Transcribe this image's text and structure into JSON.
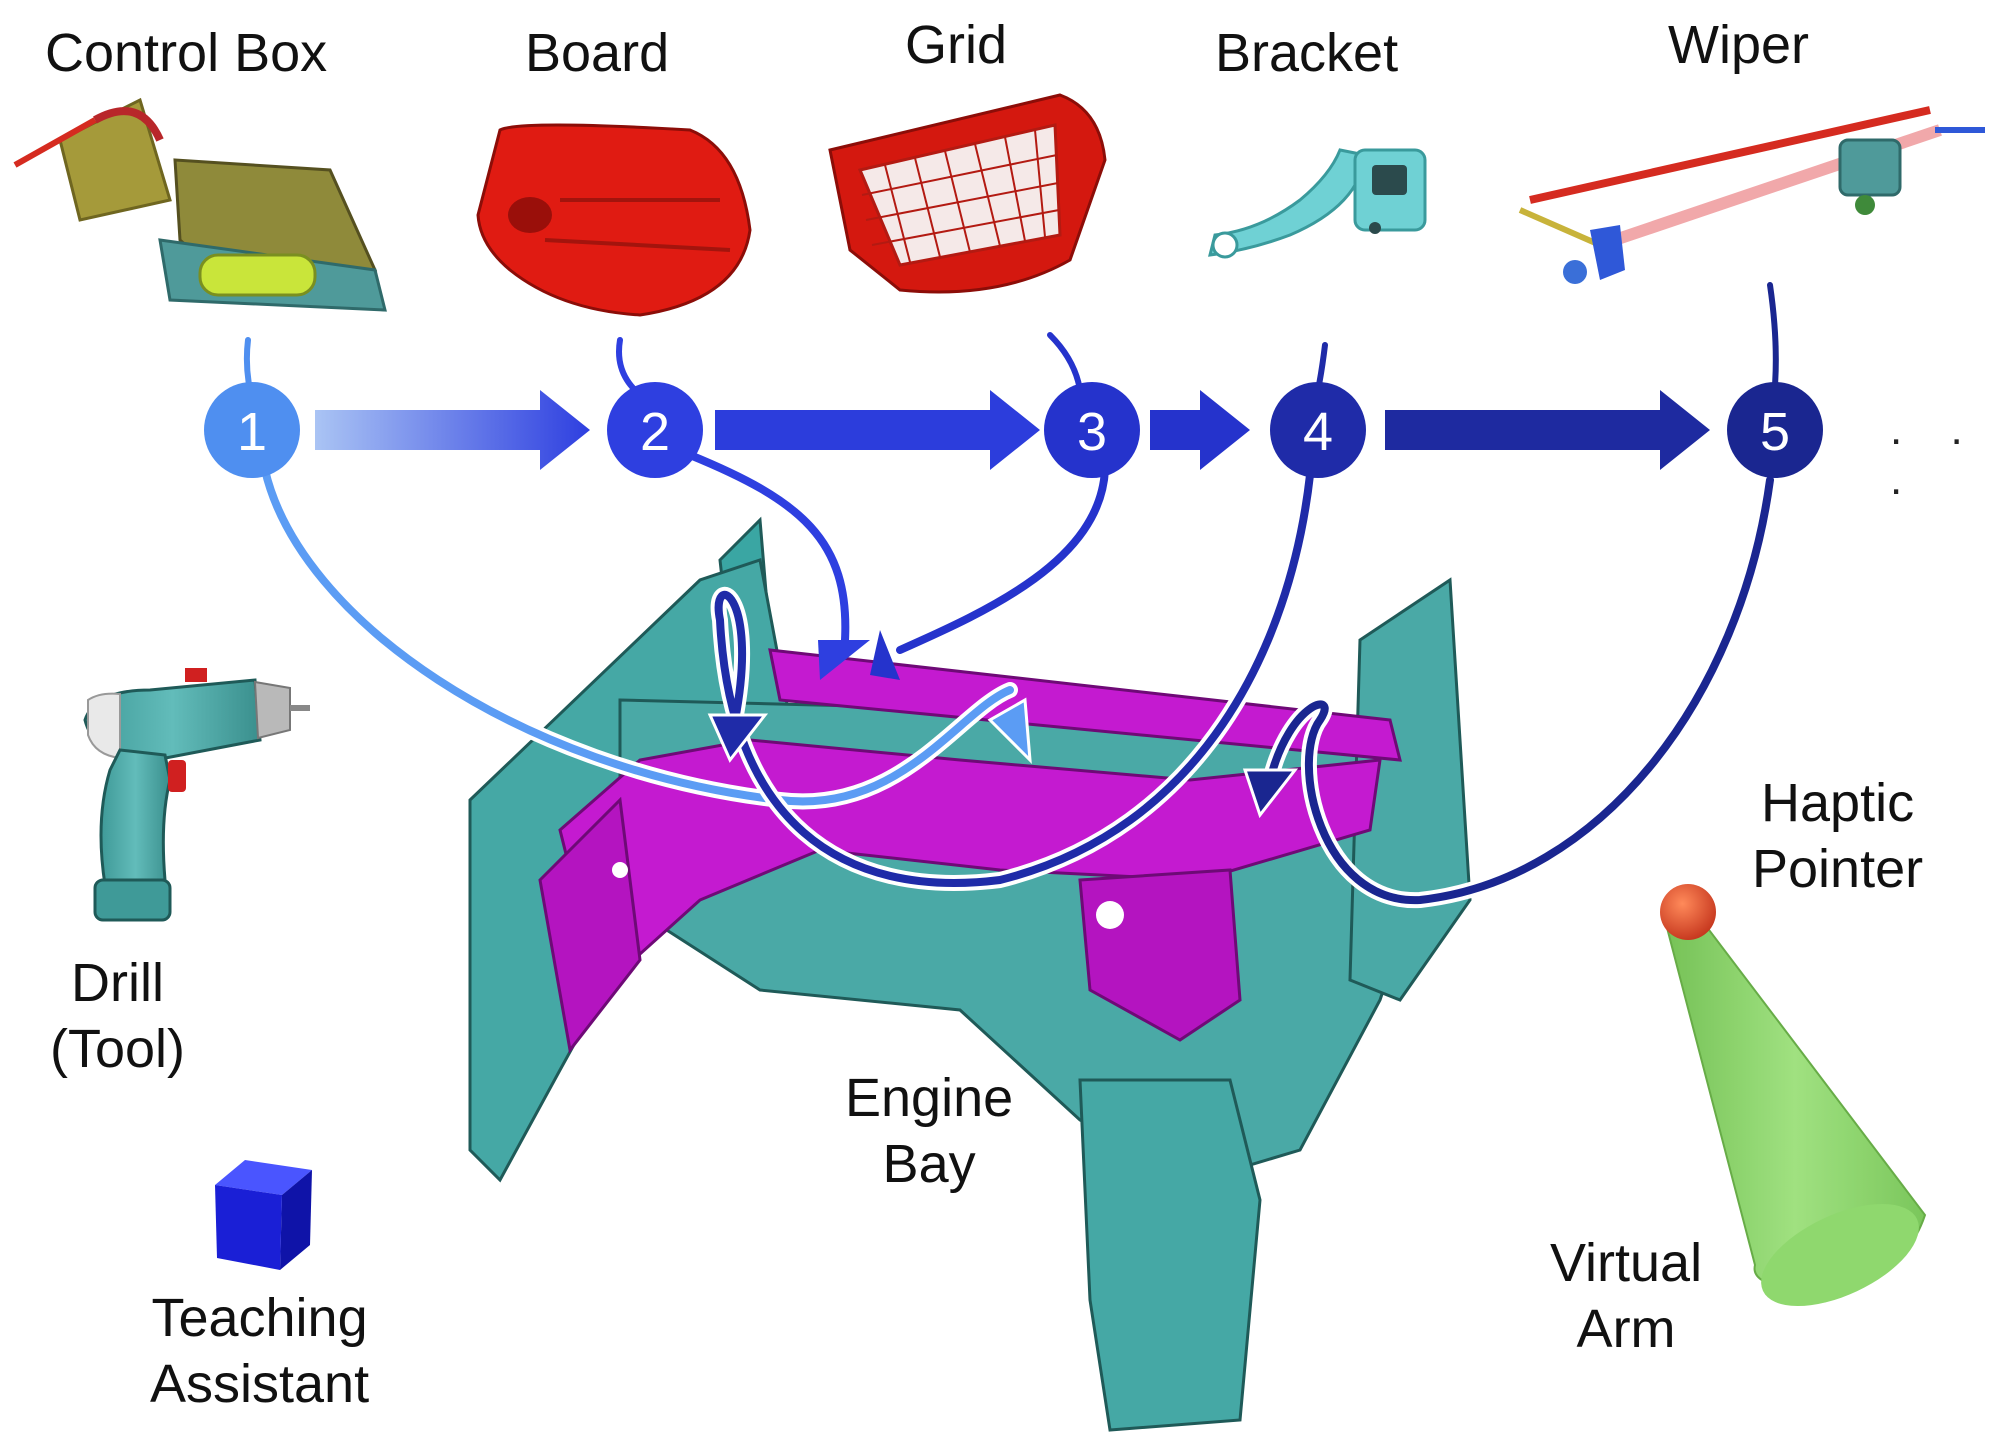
{
  "parts": [
    {
      "id": "control-box",
      "label": "Control Box"
    },
    {
      "id": "board",
      "label": "Board"
    },
    {
      "id": "grid",
      "label": "Grid"
    },
    {
      "id": "bracket",
      "label": "Bracket"
    },
    {
      "id": "wiper",
      "label": "Wiper"
    }
  ],
  "steps": [
    "1",
    "2",
    "3",
    "4",
    "5"
  ],
  "ellipsis": ". . .",
  "labels": {
    "drill_line1": "Drill",
    "drill_line2": "(Tool)",
    "engine_line1": "Engine",
    "engine_line2": "Bay",
    "haptic_line1": "Haptic",
    "haptic_line2": "Pointer",
    "arm_line1": "Virtual",
    "arm_line2": "Arm",
    "ta_line1": "Teaching",
    "ta_line2": "Assistant"
  },
  "colors": {
    "step1": "#4f8ff0",
    "step2": "#2e3fe0",
    "step3": "#2533cc",
    "step4": "#1f2ba8",
    "step5": "#1a2690",
    "chassis_teal": "#4aa9a6",
    "chassis_magenta": "#c41ad0",
    "red_part": "#e01b12",
    "cube_blue": "#1a1fd6",
    "arm_green": "#8cd46a",
    "pointer_red": "#e2452a"
  }
}
